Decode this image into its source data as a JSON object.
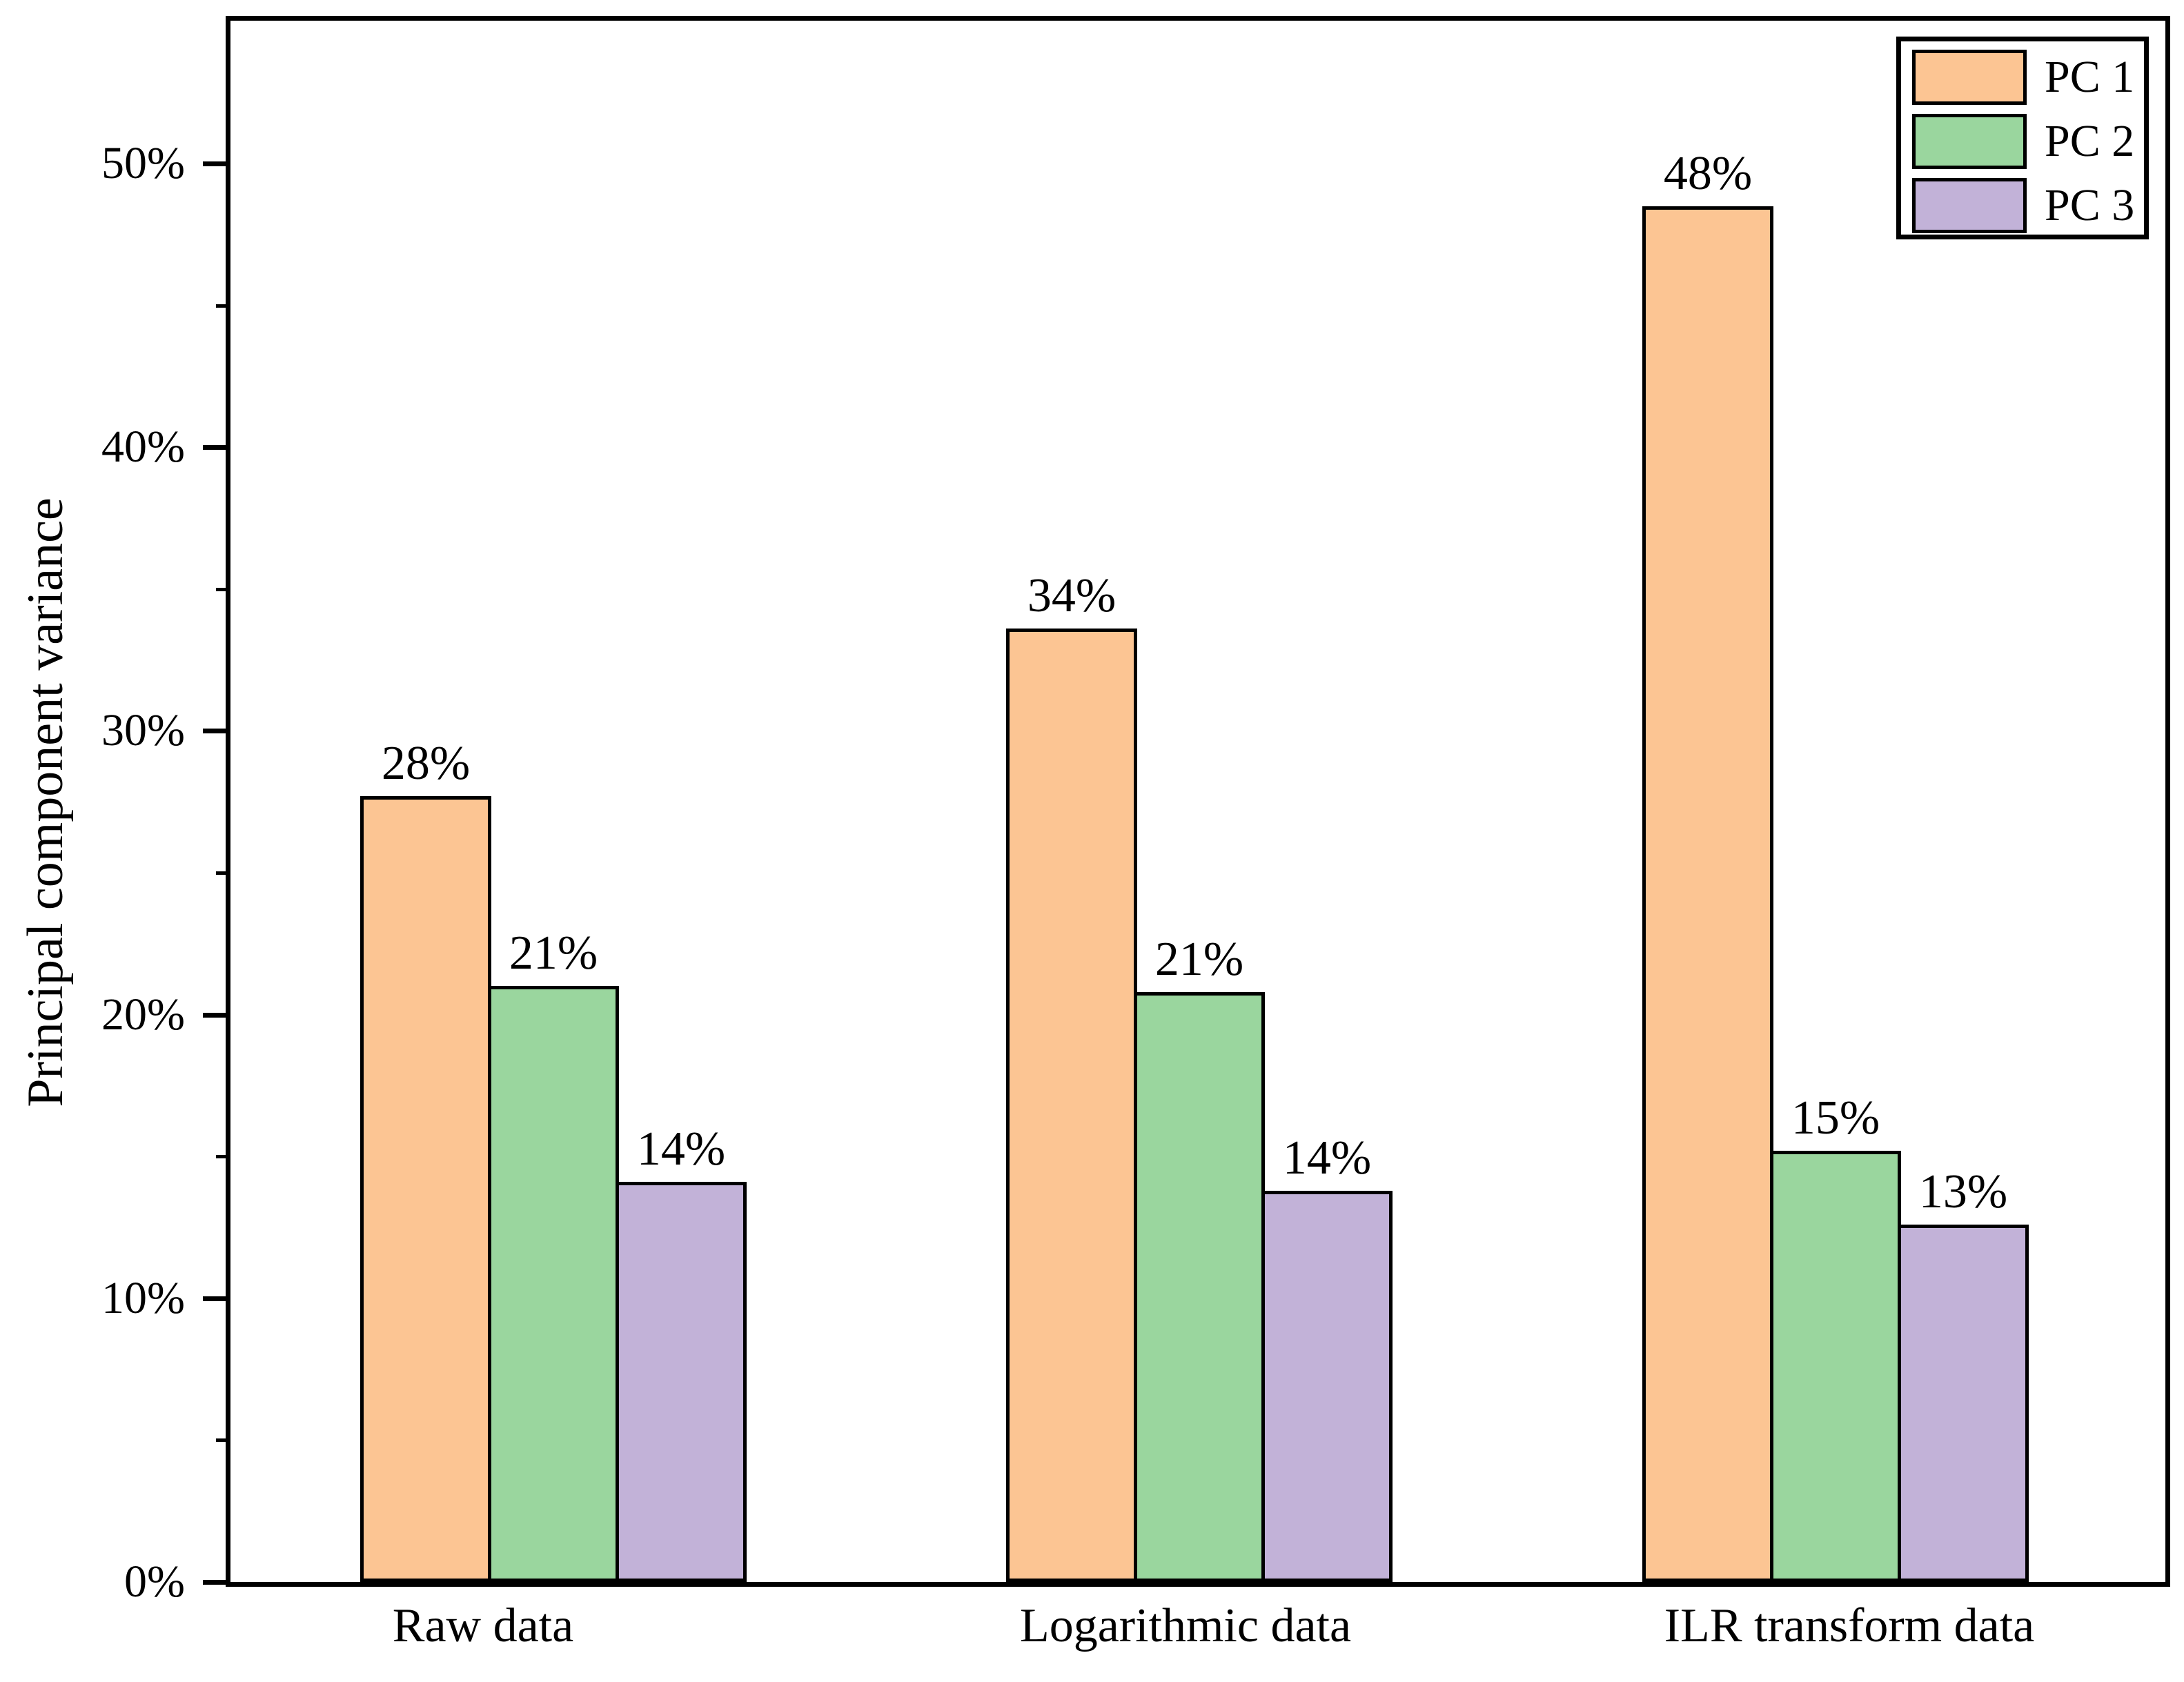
{
  "chart_data": {
    "type": "bar",
    "title": "",
    "xlabel": "",
    "ylabel": "Principal component variance",
    "categories": [
      "Raw data",
      "Logarithmic data",
      "ILR transform data"
    ],
    "series": [
      {
        "name": "PC 1",
        "color": "#FCC593",
        "values": [
          27.7,
          33.6,
          48.5
        ],
        "bar_labels": [
          "28%",
          "34%",
          "48%"
        ]
      },
      {
        "name": "PC 2",
        "color": "#9AD69E",
        "values": [
          21.0,
          20.8,
          15.2
        ],
        "bar_labels": [
          "21%",
          "21%",
          "15%"
        ]
      },
      {
        "name": "PC 3",
        "color": "#C2B2D8",
        "values": [
          14.1,
          13.8,
          12.6
        ],
        "bar_labels": [
          "14%",
          "14%",
          "13%"
        ]
      }
    ],
    "y_axis": {
      "min": 0,
      "max": 55,
      "major_ticks": [
        0,
        10,
        20,
        30,
        40,
        50
      ],
      "major_tick_labels": [
        "0%",
        "10%",
        "20%",
        "30%",
        "40%",
        "50%"
      ],
      "minor_ticks": [
        5,
        15,
        25,
        35,
        45
      ]
    },
    "legend": {
      "position": "top-right",
      "entries": [
        "PC 1",
        "PC 2",
        "PC 3"
      ]
    },
    "grid": false,
    "bar_edge_color": "#000000",
    "text_color": "#000000",
    "background_color": "#FFFFFF"
  }
}
